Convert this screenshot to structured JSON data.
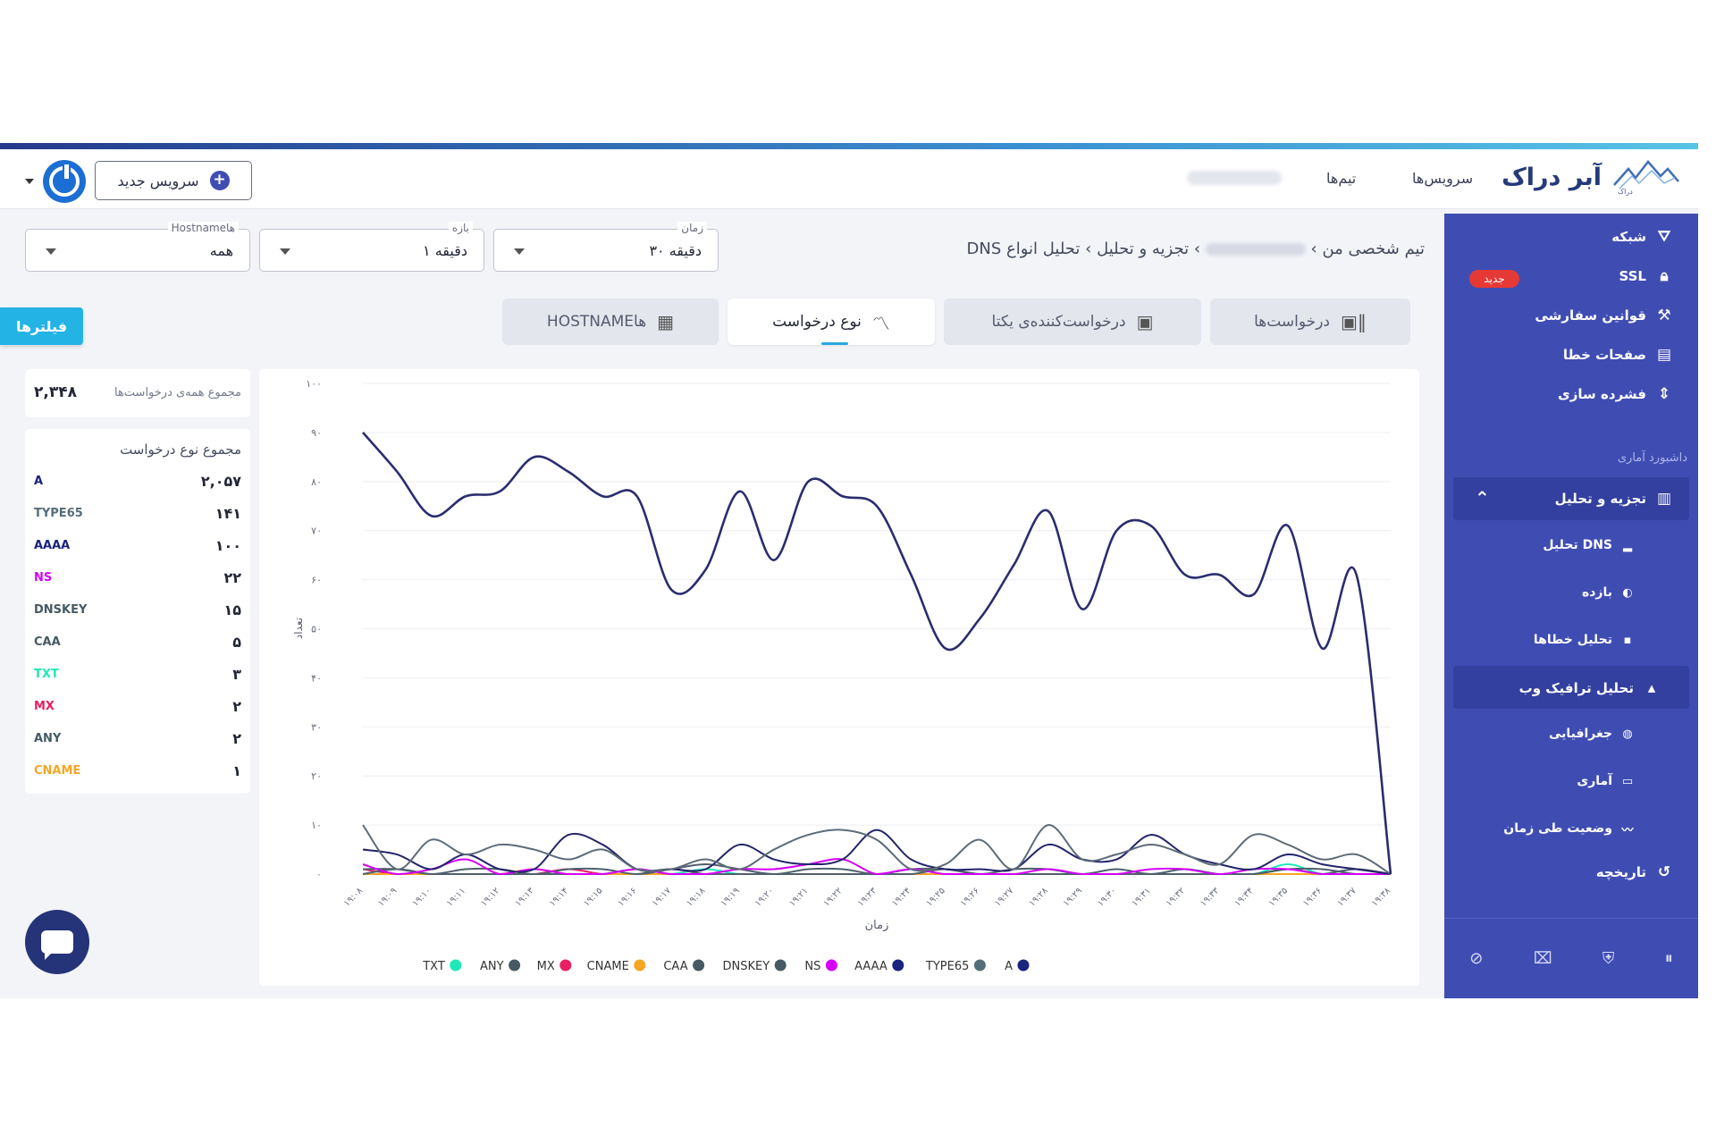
{
  "header": {
    "brand": "آبر دراک",
    "brand_small": "دراک",
    "nav": [
      "سرویس‌ها",
      "تیم‌ها"
    ],
    "new_service": "سرویس جدید",
    "plus": "+"
  },
  "sidebar": {
    "items": [
      {
        "label": "شبکه",
        "icon": "network-icon",
        "glyph": "⛛"
      },
      {
        "label": "SSL",
        "icon": "lock-icon",
        "glyph": "🔒︎"
      },
      {
        "label": "قوانین سفارشی",
        "icon": "gavel-icon",
        "glyph": "⚒"
      },
      {
        "label": "صفحات خطا",
        "icon": "error-page-icon",
        "glyph": "▤"
      },
      {
        "label": "فشرده سازی",
        "icon": "compress-icon",
        "glyph": "⇕"
      }
    ],
    "new_badge": "جدید",
    "section": "داشبورد آماری",
    "analysis": {
      "label": "تجزیه و تحلیل",
      "glyph": "▥",
      "chevron": "⌃"
    },
    "sub_items": [
      {
        "label": "تحلیل DNS",
        "glyph": "▂"
      },
      {
        "label": "بازده",
        "glyph": "◐"
      },
      {
        "label": "تحلیل خطاها",
        "glyph": "▪"
      }
    ],
    "traffic": {
      "label": "تحلیل ترافیک وب",
      "glyph": "▴"
    },
    "traffic_items": [
      {
        "label": "جغرافیایی",
        "glyph": "◍"
      },
      {
        "label": "آماری",
        "glyph": "▭"
      },
      {
        "label": "وضعیت طی زمان",
        "glyph": "〰"
      }
    ],
    "history": {
      "label": "تاریخچه",
      "glyph": "↺"
    },
    "bottom_icons": [
      "⏸",
      "⛨",
      "⌧",
      "⊘"
    ]
  },
  "breadcrumb": {
    "part1": "تیم شخصی من",
    "sep": "›",
    "part3": "تجزیه و تحلیل",
    "part4": "تحلیل انواع DNS"
  },
  "filters": {
    "time": {
      "label": "زمان",
      "value": "۳۰ دقیقه"
    },
    "range": {
      "label": "بازه",
      "value": "۱ دقیقه"
    },
    "hostname": {
      "label": "Hostnameها",
      "value": "همه"
    },
    "button": "فیلترها"
  },
  "tabs": [
    {
      "label": "درخواست‌ها",
      "glyph": "▣‖"
    },
    {
      "label": "درخواست‌کننده‌ی یکتا",
      "glyph": "▣"
    },
    {
      "label": "نوع درخواست",
      "glyph": "〽"
    },
    {
      "label": "HOSTNAMEها",
      "glyph": "▦"
    }
  ],
  "stats": {
    "total_label": "مجموع همه‌ی درخواست‌ها",
    "total_value": "۲,۳۴۸",
    "types_title": "مجموع نوع درخواست",
    "types": [
      {
        "name": "A",
        "value": "۲,۰۵۷",
        "color": "#1a237e"
      },
      {
        "name": "TYPE65",
        "value": "۱۴۱",
        "color": "#546e7a"
      },
      {
        "name": "AAAA",
        "value": "۱۰۰",
        "color": "#1a237e"
      },
      {
        "name": "NS",
        "value": "۲۲",
        "color": "#d500f9"
      },
      {
        "name": "DNSKEY",
        "value": "۱۵",
        "color": "#455a64"
      },
      {
        "name": "CAA",
        "value": "۵",
        "color": "#455a64"
      },
      {
        "name": "TXT",
        "value": "۳",
        "color": "#1de9b6"
      },
      {
        "name": "MX",
        "value": "۲",
        "color": "#e91e63"
      },
      {
        "name": "ANY",
        "value": "۲",
        "color": "#455a64"
      },
      {
        "name": "CNAME",
        "value": "۱",
        "color": "#f5a623"
      }
    ]
  },
  "chart_data": {
    "type": "line",
    "xlabel": "زمان",
    "ylabel": "تعداد",
    "ylim": [
      0,
      100
    ],
    "y_ticks": [
      "۰",
      "۱۰",
      "۲۰",
      "۳۰",
      "۴۰",
      "۵۰",
      "۶۰",
      "۷۰",
      "۸۰",
      "۹۰",
      "۱۰۰"
    ],
    "grid": true,
    "legend_position": "bottom",
    "categories": [
      "۱۹:۰۸",
      "۱۹:۰۹",
      "۱۹:۱۰",
      "۱۹:۱۱",
      "۱۹:۱۲",
      "۱۹:۱۳",
      "۱۹:۱۴",
      "۱۹:۱۵",
      "۱۹:۱۶",
      "۱۹:۱۷",
      "۱۹:۱۸",
      "۱۹:۱۹",
      "۱۹:۲۰",
      "۱۹:۲۱",
      "۱۹:۲۲",
      "۱۹:۲۳",
      "۱۹:۲۴",
      "۱۹:۲۵",
      "۱۹:۲۶",
      "۱۹:۲۷",
      "۱۹:۲۸",
      "۱۹:۲۹",
      "۱۹:۳۰",
      "۱۹:۳۱",
      "۱۹:۳۲",
      "۱۹:۳۳",
      "۱۹:۳۴",
      "۱۹:۳۵",
      "۱۹:۳۶",
      "۱۹:۳۷",
      "۱۹:۳۸"
    ],
    "series": [
      {
        "name": "A",
        "color": "#2b2d6e",
        "values": [
          90,
          82,
          73,
          77,
          78,
          85,
          82,
          77,
          77,
          58,
          62,
          78,
          64,
          80,
          77,
          75,
          61,
          46,
          52,
          63,
          74,
          54,
          70,
          71,
          61,
          61,
          57,
          71,
          46,
          61,
          0
        ]
      },
      {
        "name": "TYPE65",
        "color": "#5c6b78",
        "values": [
          10,
          1,
          7,
          4,
          6,
          5,
          3,
          5,
          1,
          1,
          3,
          1,
          5,
          8,
          9,
          7,
          1,
          2,
          7,
          1,
          10,
          3,
          4,
          6,
          4,
          2,
          8,
          6,
          3,
          4,
          0
        ]
      },
      {
        "name": "AAAA",
        "color": "#23246a",
        "values": [
          5,
          4,
          1,
          4,
          1,
          1,
          8,
          6,
          1,
          1,
          1,
          6,
          3,
          2,
          3,
          9,
          3,
          1,
          1,
          1,
          6,
          3,
          3,
          8,
          4,
          2,
          1,
          4,
          2,
          1,
          0
        ]
      },
      {
        "name": "NS",
        "color": "#d500f9",
        "values": [
          2,
          0,
          1,
          3,
          0,
          1,
          0,
          0,
          1,
          0,
          0,
          1,
          1,
          2,
          3,
          0,
          1,
          0,
          0,
          0,
          1,
          0,
          0,
          1,
          1,
          0,
          1,
          1,
          0,
          0,
          0
        ]
      },
      {
        "name": "DNSKEY",
        "color": "#4e5f6c",
        "values": [
          1,
          1,
          0,
          1,
          1,
          0,
          1,
          1,
          0,
          1,
          2,
          1,
          0,
          1,
          1,
          0,
          1,
          1,
          0,
          1,
          1,
          0,
          1,
          0,
          1,
          0,
          0,
          1,
          1,
          0,
          0
        ]
      },
      {
        "name": "CAA",
        "color": "#4e5f6c",
        "values": [
          0,
          1,
          0,
          0,
          0,
          0,
          0,
          0,
          1,
          0,
          0,
          0,
          0,
          0,
          0,
          0,
          0,
          1,
          0,
          0,
          0,
          0,
          0,
          0,
          0,
          0,
          0,
          1,
          0,
          0,
          0
        ]
      },
      {
        "name": "CNAME",
        "color": "#f5a623",
        "values": [
          0,
          0,
          0,
          0,
          0,
          1,
          0,
          0,
          0,
          0,
          0,
          0,
          0,
          0,
          0,
          0,
          0,
          0,
          0,
          0,
          0,
          0,
          0,
          0,
          0,
          0,
          0,
          0,
          0,
          0,
          0
        ]
      },
      {
        "name": "MX",
        "color": "#e91e63",
        "values": [
          1,
          0,
          0,
          0,
          0,
          0,
          1,
          0,
          0,
          0,
          0,
          0,
          0,
          0,
          0,
          0,
          0,
          0,
          0,
          0,
          0,
          0,
          0,
          0,
          0,
          0,
          0,
          1,
          0,
          0,
          0
        ]
      },
      {
        "name": "ANY",
        "color": "#4e5f6c",
        "values": [
          0,
          0,
          0,
          0,
          0,
          0,
          0,
          0,
          0,
          1,
          0,
          0,
          0,
          0,
          0,
          0,
          0,
          0,
          0,
          0,
          0,
          0,
          0,
          0,
          0,
          0,
          0,
          0,
          0,
          1,
          0
        ]
      },
      {
        "name": "TXT",
        "color": "#1de9b6",
        "values": [
          0,
          0,
          0,
          0,
          0,
          0,
          0,
          0,
          0,
          0,
          1,
          0,
          0,
          0,
          0,
          0,
          0,
          0,
          0,
          0,
          0,
          0,
          0,
          0,
          0,
          0,
          0,
          2,
          0,
          0,
          0
        ]
      }
    ],
    "legend": [
      {
        "name": "A",
        "color": "#1a237e"
      },
      {
        "name": "TYPE65",
        "color": "#546e7a"
      },
      {
        "name": "AAAA",
        "color": "#1a237e"
      },
      {
        "name": "NS",
        "color": "#d500f9"
      },
      {
        "name": "DNSKEY",
        "color": "#455a64"
      },
      {
        "name": "CAA",
        "color": "#455a64"
      },
      {
        "name": "CNAME",
        "color": "#f5a623"
      },
      {
        "name": "MX",
        "color": "#e91e63"
      },
      {
        "name": "ANY",
        "color": "#455a64"
      },
      {
        "name": "TXT",
        "color": "#1de9b6"
      }
    ]
  }
}
